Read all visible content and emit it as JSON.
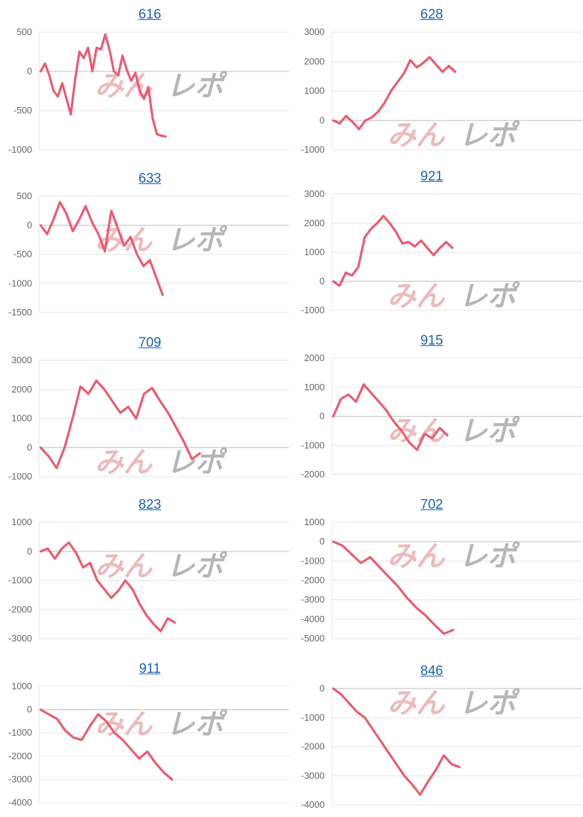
{
  "colors": {
    "line": "#eb5a72",
    "grid": "#e6e6e6",
    "zero_axis": "#c9c9c9",
    "tick_text": "#666666",
    "title_link": "#1a5fb4"
  },
  "watermark": {
    "text": "みんレポ",
    "description": "logo watermark"
  },
  "chart_data": [
    {
      "type": "line",
      "title": "616",
      "ylim": [
        -1000,
        500
      ],
      "yticks": [
        500,
        0,
        -500,
        -1000
      ],
      "x": [
        0,
        1,
        2,
        3,
        4,
        5,
        6,
        7,
        8,
        9,
        10,
        11,
        12,
        13,
        14,
        15,
        16,
        17,
        18,
        19,
        20,
        21,
        22,
        23,
        24,
        25,
        26,
        27,
        28,
        29,
        30,
        31,
        32,
        33,
        34,
        35,
        36,
        37,
        38,
        39,
        40,
        41,
        42,
        43,
        44,
        45,
        46,
        47,
        48,
        49
      ],
      "values": [
        0,
        100,
        -50,
        -250,
        -320,
        -150,
        -350,
        -550,
        -100,
        250,
        170,
        300,
        0,
        300,
        280,
        470,
        270,
        0,
        -50,
        200,
        20,
        -120,
        -20,
        -250,
        -350,
        -200,
        -600,
        -800,
        -820,
        -830,
        null,
        null,
        null,
        null,
        null,
        null,
        null,
        null,
        null,
        null,
        null,
        null,
        null,
        null,
        null,
        null,
        null,
        null,
        null,
        null
      ]
    },
    {
      "type": "line",
      "title": "628",
      "ylim": [
        -1000,
        3000
      ],
      "yticks": [
        3000,
        2000,
        1000,
        0,
        -1000
      ],
      "values": [
        0,
        -100,
        150,
        -50,
        -300,
        0,
        100,
        300,
        600,
        1000,
        1300,
        1600,
        2050,
        1800,
        1950,
        2150,
        1900,
        1650,
        1850,
        1650
      ]
    },
    {
      "type": "line",
      "title": "633",
      "ylim": [
        -1500,
        500
      ],
      "yticks": [
        500,
        0,
        -500,
        -1000,
        -1500
      ],
      "values": [
        0,
        -150,
        100,
        400,
        200,
        -100,
        100,
        330,
        50,
        -150,
        -450,
        250,
        -50,
        -350,
        -200,
        -500,
        -700,
        -600,
        -900,
        -1200
      ]
    },
    {
      "type": "line",
      "title": "921",
      "ylim": [
        -1000,
        3000
      ],
      "yticks": [
        3000,
        2000,
        1000,
        0,
        -1000
      ],
      "values": [
        0,
        -150,
        300,
        200,
        500,
        1500,
        1800,
        2000,
        2250,
        2000,
        1700,
        1300,
        1350,
        1200,
        1400,
        1150,
        900,
        1150,
        1350,
        1150
      ]
    },
    {
      "type": "line",
      "title": "709",
      "ylim": [
        -1000,
        3000
      ],
      "yticks": [
        3000,
        2000,
        1000,
        0,
        -1000
      ],
      "values": [
        0,
        -300,
        -700,
        0,
        1000,
        2100,
        1850,
        2300,
        2000,
        1600,
        1200,
        1400,
        1000,
        1850,
        2050,
        1600,
        1200,
        700,
        200,
        -400,
        -200
      ]
    },
    {
      "type": "line",
      "title": "915",
      "ylim": [
        -2000,
        2000
      ],
      "yticks": [
        2000,
        1000,
        0,
        -1000,
        -2000
      ],
      "values": [
        0,
        600,
        750,
        500,
        1100,
        800,
        500,
        200,
        -200,
        -500,
        -900,
        -1150,
        -600,
        -750,
        -400,
        -650
      ]
    },
    {
      "type": "line",
      "title": "823",
      "ylim": [
        -3000,
        1000
      ],
      "yticks": [
        1000,
        0,
        -1000,
        -2000,
        -3000
      ],
      "values": [
        0,
        100,
        -250,
        100,
        300,
        -50,
        -550,
        -400,
        -1000,
        -1300,
        -1600,
        -1350,
        -1000,
        -1300,
        -1800,
        -2200,
        -2500,
        -2750,
        -2300,
        -2450
      ]
    },
    {
      "type": "line",
      "title": "702",
      "ylim": [
        -5000,
        1000
      ],
      "yticks": [
        1000,
        0,
        -1000,
        -2000,
        -3000,
        -4000,
        -5000
      ],
      "values": [
        0,
        -200,
        -650,
        -1100,
        -800,
        -1300,
        -1800,
        -2300,
        -2900,
        -3400,
        -3800,
        -4300,
        -4750,
        -4550
      ]
    },
    {
      "type": "line",
      "title": "911",
      "ylim": [
        -4000,
        1000
      ],
      "yticks": [
        1000,
        0,
        -1000,
        -2000,
        -3000,
        -4000
      ],
      "values": [
        0,
        -200,
        -400,
        -900,
        -1200,
        -1300,
        -700,
        -200,
        -500,
        -1000,
        -1300,
        -1700,
        -2100,
        -1800,
        -2300,
        -2700,
        -3000
      ]
    },
    {
      "type": "line",
      "title": "846",
      "ylim": [
        -4000,
        0
      ],
      "yticks": [
        0,
        -1000,
        -2000,
        -3000,
        -4000
      ],
      "values": [
        0,
        -200,
        -500,
        -800,
        -1000,
        -1400,
        -1800,
        -2200,
        -2600,
        -3000,
        -3300,
        -3650,
        -3200,
        -2800,
        -2300,
        -2600,
        -2700
      ]
    }
  ]
}
